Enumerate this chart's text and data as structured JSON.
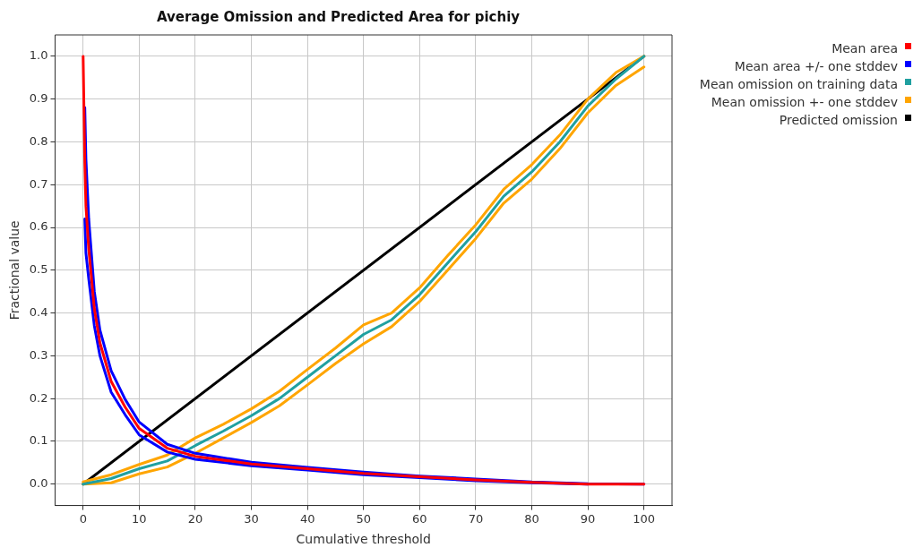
{
  "chart_data": {
    "type": "line",
    "title": "Average Omission and Predicted Area for pichiy",
    "xlabel": "Cumulative threshold",
    "ylabel": "Fractional value",
    "xlim": [
      -5,
      105
    ],
    "xticks": [
      0,
      10,
      20,
      30,
      40,
      50,
      60,
      70,
      80,
      90,
      100
    ],
    "ylim": [
      -0.05,
      1.05
    ],
    "yticks": [
      {
        "value": 0,
        "label": "0.0"
      },
      0.1,
      0.2,
      0.3,
      0.4,
      0.5,
      0.6,
      0.7,
      0.8,
      0.9,
      {
        "value": 1,
        "label": "1.0"
      }
    ],
    "grid": true,
    "legend": "top right",
    "marker": "none",
    "line_style": "solid",
    "series": [
      {
        "name": "Mean area",
        "color": "#ff0000",
        "x": [
          0,
          0.3,
          0.5,
          1,
          2,
          3,
          5,
          7.5,
          10,
          15,
          20,
          30,
          40,
          50,
          60,
          70,
          80,
          90,
          100
        ],
        "values": [
          1.0,
          0.75,
          0.65,
          0.55,
          0.41,
          0.33,
          0.24,
          0.18,
          0.13,
          0.084,
          0.065,
          0.047,
          0.036,
          0.025,
          0.017,
          0.01,
          0.004,
          0.0,
          0.0
        ]
      },
      {
        "name": "Mean area +/- one stddev",
        "color": "#0000ff",
        "x": [
          0.3,
          0.5,
          1,
          2,
          3,
          5,
          7.5,
          10,
          15,
          20,
          30,
          40,
          50,
          60,
          70,
          80,
          90,
          100
        ],
        "values": [
          0.88,
          0.76,
          0.62,
          0.45,
          0.36,
          0.265,
          0.198,
          0.145,
          0.093,
          0.072,
          0.051,
          0.039,
          0.028,
          0.019,
          0.012,
          0.005,
          0.001,
          0.0
        ]
      },
      {
        "color": "#0000ff",
        "x": [
          0.3,
          0.5,
          1,
          2,
          3,
          5,
          7.5,
          10,
          15,
          20,
          30,
          40,
          50,
          60,
          70,
          80,
          90
        ],
        "values": [
          0.62,
          0.54,
          0.48,
          0.37,
          0.3,
          0.215,
          0.162,
          0.115,
          0.075,
          0.058,
          0.043,
          0.033,
          0.022,
          0.015,
          0.008,
          0.003,
          0.0
        ]
      },
      {
        "name": "Mean omission on training data",
        "color": "#20a0a0",
        "x": [
          0,
          5,
          10,
          15,
          20,
          25,
          30,
          35,
          40,
          45,
          50,
          55,
          60,
          65,
          70,
          75,
          80,
          85,
          90,
          95,
          100
        ],
        "values": [
          0.0,
          0.013,
          0.036,
          0.054,
          0.09,
          0.124,
          0.16,
          0.2,
          0.25,
          0.3,
          0.35,
          0.384,
          0.443,
          0.517,
          0.59,
          0.673,
          0.73,
          0.8,
          0.884,
          0.947,
          1.0
        ]
      },
      {
        "name": "Mean omission +- one stddev",
        "color": "#ffa500",
        "x": [
          0,
          5,
          10,
          15,
          20,
          25,
          30,
          35,
          40,
          45,
          50,
          55,
          60,
          65,
          70,
          75,
          80,
          85,
          90,
          95,
          100
        ],
        "values": [
          0.005,
          0.022,
          0.046,
          0.068,
          0.108,
          0.14,
          0.176,
          0.217,
          0.268,
          0.318,
          0.372,
          0.4,
          0.459,
          0.534,
          0.606,
          0.689,
          0.747,
          0.816,
          0.9,
          0.962,
          1.0
        ]
      },
      {
        "color": "#ffa500",
        "x": [
          0,
          5,
          10,
          15,
          20,
          25,
          30,
          35,
          40,
          45,
          50,
          55,
          60,
          65,
          70,
          75,
          80,
          85,
          90,
          95,
          100
        ],
        "values": [
          0.0,
          0.003,
          0.024,
          0.04,
          0.072,
          0.108,
          0.144,
          0.183,
          0.232,
          0.282,
          0.328,
          0.368,
          0.427,
          0.5,
          0.574,
          0.657,
          0.713,
          0.784,
          0.868,
          0.932,
          0.975
        ]
      },
      {
        "name": "Predicted omission",
        "color": "#000000",
        "x": [
          0,
          100
        ],
        "values": [
          0.0,
          1.0
        ]
      }
    ]
  }
}
